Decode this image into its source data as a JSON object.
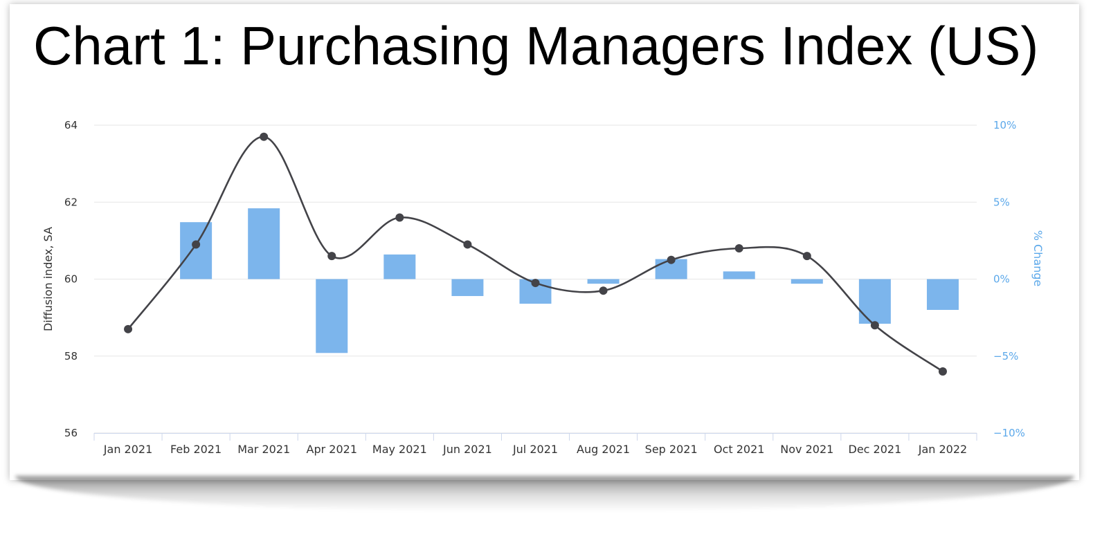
{
  "title": "Chart 1: Purchasing Managers Index (US)",
  "chart_data": {
    "type": "bar+line",
    "title": "Chart 1: Purchasing Managers Index (US)",
    "categories": [
      "Jan 2021",
      "Feb 2021",
      "Mar 2021",
      "Apr 2021",
      "May 2021",
      "Jun 2021",
      "Jul 2021",
      "Aug 2021",
      "Sep 2021",
      "Oct 2021",
      "Nov 2021",
      "Dec 2021",
      "Jan 2022"
    ],
    "ylabel_left": "Diffusion index, SA",
    "ylabel_right": "% Change",
    "ylim_left": [
      56,
      64
    ],
    "yticks_left": [
      "56",
      "58",
      "60",
      "62",
      "64"
    ],
    "ylim_right": [
      -10,
      10
    ],
    "yticks_right": [
      "−10%",
      "−5%",
      "0%",
      "5%",
      "10%"
    ],
    "grid": true,
    "legend": "none",
    "series": [
      {
        "type": "column",
        "axis": "right",
        "color": "#7cb5ec",
        "values": [
          null,
          3.7,
          4.6,
          -4.8,
          1.6,
          -1.1,
          -1.6,
          -0.3,
          1.3,
          0.5,
          -0.3,
          -2.9,
          -2.0
        ]
      },
      {
        "type": "spline",
        "axis": "left",
        "color": "#434348",
        "values": [
          58.7,
          60.9,
          63.7,
          60.6,
          61.6,
          60.9,
          59.9,
          59.7,
          60.5,
          60.8,
          60.6,
          58.8,
          57.6
        ]
      }
    ]
  }
}
